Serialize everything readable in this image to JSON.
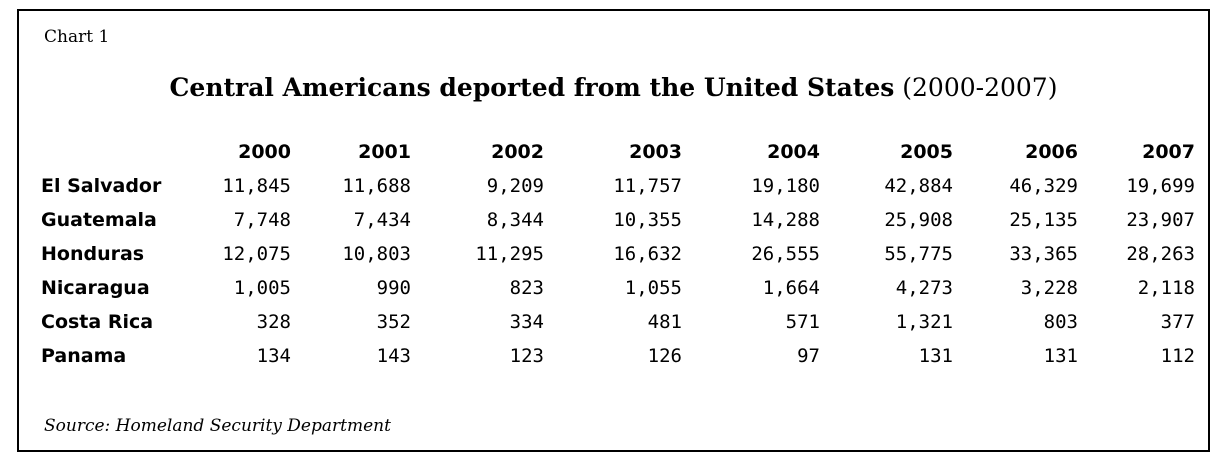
{
  "label": "Chart 1",
  "title_main": "Central Americans deported from the United States",
  "title_years": "(2000-2007)",
  "source": "Source: Homeland Security Department",
  "chart_data": {
    "type": "table",
    "title": "Central Americans deported from the United States (2000-2007)",
    "columns": [
      "2000",
      "2001",
      "2002",
      "2003",
      "2004",
      "2005",
      "2006",
      "2007"
    ],
    "rows": [
      {
        "name": "El Salvador",
        "values": [
          "11,845",
          "11,688",
          "9,209",
          "11,757",
          "19,180",
          "42,884",
          "46,329",
          "19,699"
        ]
      },
      {
        "name": "Guatemala",
        "values": [
          "7,748",
          "7,434",
          "8,344",
          "10,355",
          "14,288",
          "25,908",
          "25,135",
          "23,907"
        ]
      },
      {
        "name": "Honduras",
        "values": [
          "12,075",
          "10,803",
          "11,295",
          "16,632",
          "26,555",
          "55,775",
          "33,365",
          "28,263"
        ]
      },
      {
        "name": "Nicaragua",
        "values": [
          "1,005",
          "990",
          "823",
          "1,055",
          "1,664",
          "4,273",
          "3,228",
          "2,118"
        ]
      },
      {
        "name": "Costa Rica",
        "values": [
          "328",
          "352",
          "334",
          "481",
          "571",
          "1,321",
          "803",
          "377"
        ]
      },
      {
        "name": "Panama",
        "values": [
          "134",
          "143",
          "123",
          "126",
          "97",
          "131",
          "131",
          "112"
        ]
      }
    ]
  }
}
